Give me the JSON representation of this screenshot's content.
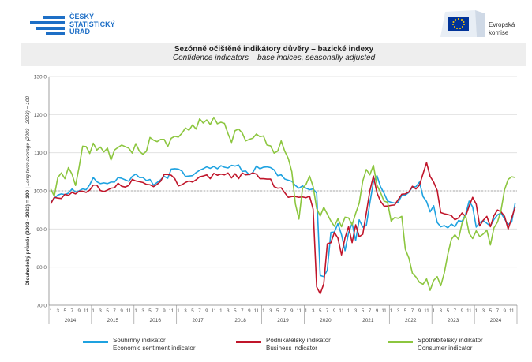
{
  "header": {
    "csu_name": [
      "ČESKÝ",
      "STATISTICKÝ",
      "ÚŘAD"
    ],
    "ec_name": [
      "Evropská",
      "komise"
    ]
  },
  "title": {
    "cs": "Sezónně očištěné indikátory důvěry – bazické indexy",
    "en": "Confidence indicators – base indices, seasonally adjusted"
  },
  "colors": {
    "summary": "#1ea2e0",
    "business": "#c0152a",
    "consumer": "#8cc63f",
    "brand": "#1e6fc6"
  },
  "chart_data": {
    "type": "line",
    "ylabel": "Dlouhodobý průměr (2003 - 2023) = 100",
    "ylabel_italic": " | Long term average (2003 - 2023) = 100",
    "ylim": [
      70,
      130
    ],
    "yticks": [
      "70,0",
      "80,0",
      "90,0",
      "100,0",
      "110,0",
      "120,0",
      "130,0"
    ],
    "reference_line": 100,
    "x_start": "2014-01",
    "x_tick_labels": [
      "1",
      "3",
      "5",
      "7",
      "9",
      "11"
    ],
    "years": [
      "2014",
      "2015",
      "2016",
      "2017",
      "2018",
      "2019",
      "2020",
      "2021",
      "2022",
      "2023",
      "2024"
    ],
    "series": [
      {
        "key": "summary",
        "name_cs": "Souhrnný indikátor",
        "name_en": "Economic sentiment indicator",
        "values": [
          97.0,
          98.0,
          98.9,
          99.2,
          99.0,
          99.4,
          100.5,
          99.7,
          100.0,
          100.5,
          100.3,
          101.6,
          103.5,
          102.4,
          101.9,
          102.1,
          101.9,
          102.3,
          102.3,
          103.5,
          103.3,
          102.9,
          102.5,
          103.8,
          104.4,
          103.5,
          103.5,
          102.7,
          103.0,
          101.5,
          102.2,
          102.9,
          103.8,
          103.3,
          105.7,
          105.8,
          105.7,
          105.2,
          103.8,
          103.9,
          104.0,
          104.8,
          105.4,
          105.8,
          106.3,
          105.9,
          106.4,
          105.8,
          106.6,
          106.2,
          106.0,
          106.7,
          106.5,
          106.8,
          105.1,
          105.2,
          104.2,
          104.8,
          106.5,
          105.8,
          106.2,
          106.3,
          106.1,
          105.5,
          104.0,
          104.2,
          103.1,
          102.8,
          102.5,
          101.4,
          100.7,
          101.3,
          100.7,
          100.3,
          100.5,
          99.4,
          77.8,
          77.5,
          79.2,
          89.1,
          89.2,
          91.4,
          88.5,
          84.3,
          89.0,
          91.5,
          87.0,
          92.4,
          90.5,
          90.9,
          96.8,
          102.3,
          104.0,
          101.1,
          99.4,
          97.3,
          97.0,
          96.8,
          97.0,
          98.8,
          98.9,
          99.6,
          101.0,
          101.1,
          102.3,
          98.5,
          97.2,
          94.5,
          96.1,
          91.7,
          90.6,
          90.9,
          90.3,
          91.3,
          90.6,
          92.2,
          92.0,
          93.8,
          97.3,
          95.8,
          90.5,
          91.7,
          92.2,
          91.5,
          90.8,
          92.5,
          93.7,
          94.2,
          92.6,
          91.2,
          91.8,
          96.9
        ]
      },
      {
        "key": "business",
        "name_cs": "Podnikatelský indikátor",
        "name_en": "Business indicator",
        "values": [
          96.6,
          98.3,
          98.1,
          98.0,
          99.1,
          98.8,
          99.6,
          99.2,
          99.9,
          99.9,
          99.6,
          100.2,
          101.5,
          101.5,
          100.1,
          99.8,
          100.2,
          100.7,
          100.8,
          102.0,
          101.2,
          101.0,
          101.4,
          103.0,
          102.6,
          102.4,
          102.2,
          101.7,
          101.6,
          101.1,
          101.7,
          102.5,
          104.3,
          104.3,
          104.1,
          103.2,
          101.3,
          101.6,
          102.2,
          102.6,
          102.3,
          102.9,
          103.7,
          103.9,
          104.2,
          103.2,
          104.6,
          104.1,
          104.4,
          104.2,
          104.7,
          103.4,
          104.5,
          103.2,
          104.7,
          104.2,
          104.3,
          104.7,
          104.4,
          103.2,
          103.2,
          103.1,
          103.1,
          101.1,
          100.7,
          100.8,
          99.5,
          98.3,
          98.5,
          98.5,
          98.3,
          98.4,
          98.2,
          98.6,
          95.2,
          74.8,
          73.0,
          75.6,
          86.1,
          86.4,
          89.1,
          87.6,
          83.2,
          87.7,
          90.6,
          86.4,
          91.1,
          88.0,
          88.6,
          94.2,
          100.0,
          103.9,
          99.5,
          97.3,
          96.0,
          96.0,
          96.2,
          96.3,
          97.7,
          99.1,
          99.2,
          99.7,
          101.2,
          100.5,
          101.5,
          104.5,
          107.4,
          103.8,
          102.3,
          100.1,
          94.3,
          94.0,
          93.8,
          93.5,
          92.4,
          92.9,
          94.2,
          93.3,
          96.0,
          98.3,
          96.5,
          90.8,
          92.3,
          93.3,
          90.6,
          93.5,
          95.0,
          94.5,
          93.3,
          90.0,
          92.9,
          95.8
        ]
      },
      {
        "key": "consumer",
        "name_cs": "Spotřebitelský indikátor",
        "name_en": "Consumer indicator",
        "values": [
          100.5,
          98.6,
          103.5,
          104.7,
          103.2,
          106.1,
          104.4,
          101.4,
          106.2,
          111.7,
          111.6,
          109.8,
          112.5,
          110.7,
          111.5,
          110.2,
          111.2,
          108.1,
          110.7,
          111.4,
          112.0,
          111.6,
          111.2,
          109.9,
          112.4,
          110.4,
          109.6,
          110.4,
          114.0,
          113.3,
          112.9,
          113.5,
          113.5,
          111.6,
          113.8,
          114.3,
          114.1,
          115.1,
          116.5,
          115.9,
          117.3,
          116.2,
          118.9,
          117.8,
          118.6,
          117.4,
          119.3,
          117.6,
          118.0,
          117.7,
          115.0,
          112.7,
          115.8,
          116.2,
          115.2,
          113.1,
          113.5,
          113.8,
          114.9,
          114.2,
          114.4,
          112.0,
          111.8,
          109.9,
          110.4,
          113.1,
          110.4,
          108.5,
          105.0,
          96.6,
          92.6,
          100.6,
          101.7,
          103.9,
          101.1,
          95.4,
          93.4,
          95.7,
          93.9,
          92.1,
          90.7,
          92.7,
          90.6,
          93.1,
          92.9,
          91.1,
          94.1,
          96.8,
          102.6,
          105.6,
          104.2,
          106.7,
          101.5,
          99.6,
          97.3,
          97.0,
          92.1,
          93.0,
          92.8,
          93.3,
          84.7,
          82.4,
          78.4,
          77.4,
          76.0,
          75.5,
          76.9,
          73.9,
          76.5,
          77.5,
          75.1,
          78.5,
          83.4,
          87.3,
          88.5,
          87.3,
          91.5,
          93.6,
          88.9,
          87.5,
          89.5,
          88.0,
          88.7,
          89.7,
          85.8,
          90.3,
          91.8,
          94.9,
          100.3,
          103.0,
          103.7,
          103.5
        ]
      }
    ]
  }
}
